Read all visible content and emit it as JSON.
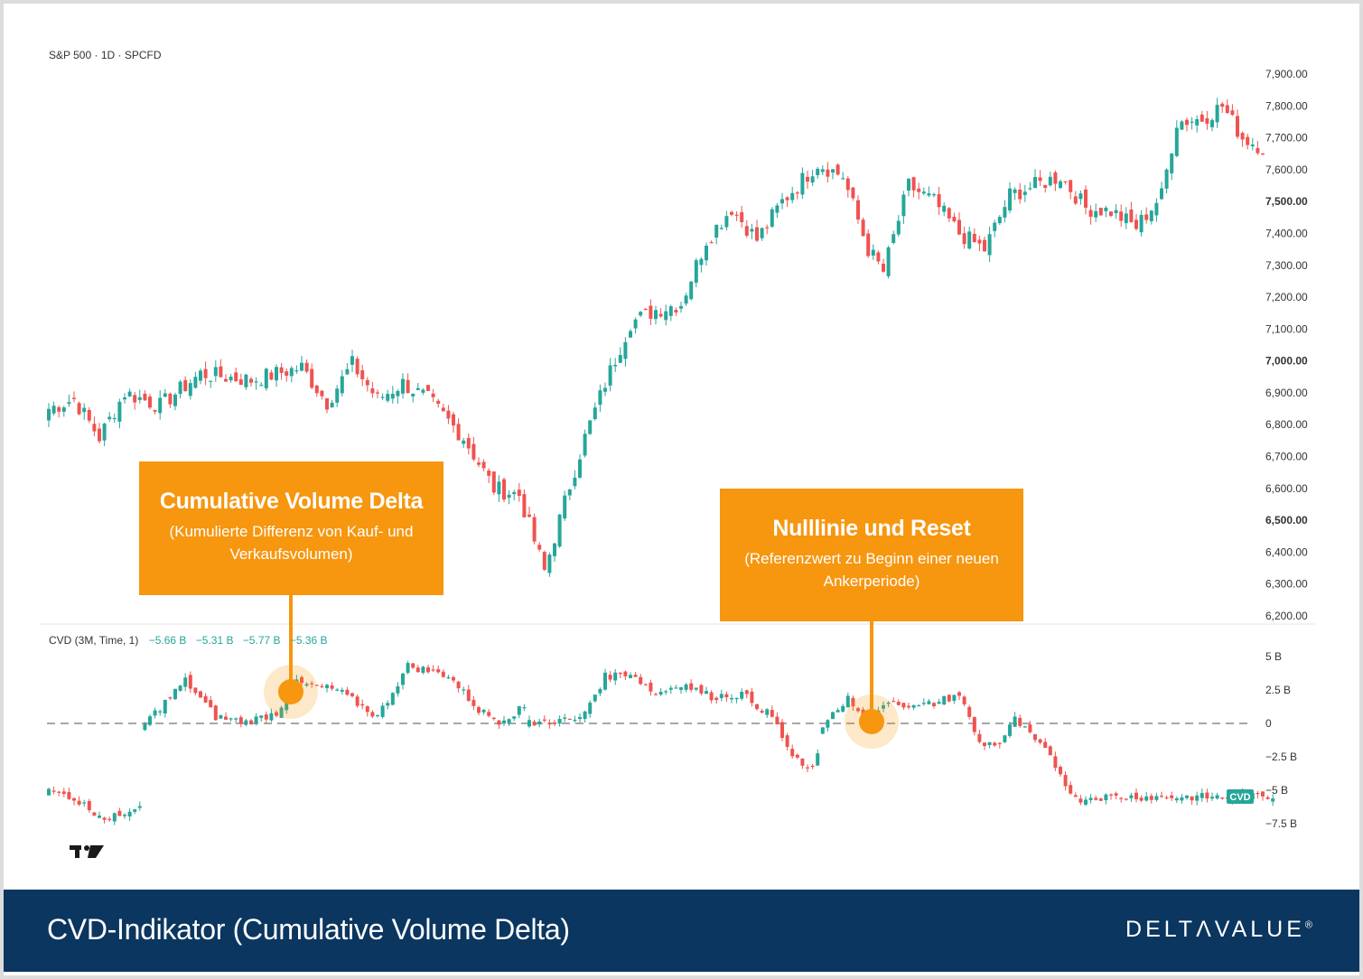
{
  "price_header": "S&P 500 · 1D · SPCFD",
  "cvd_header": {
    "label": "CVD (3M, Time, 1)",
    "values": [
      "−5.66 B",
      "−5.31 B",
      "−5.77 B",
      "−5.36 B"
    ]
  },
  "price_axis_labels": [
    "7,900.00",
    "7,800.00",
    "7,700.00",
    "7,600.00",
    "7,500.00",
    "7,400.00",
    "7,300.00",
    "7,200.00",
    "7,100.00",
    "7,000.00",
    "6,900.00",
    "6,800.00",
    "6,700.00",
    "6,600.00",
    "6,500.00",
    "6,400.00",
    "6,300.00",
    "6,200.00"
  ],
  "cvd_axis_labels": [
    "5 B",
    "2.5 B",
    "0",
    "−2.5 B",
    "−5 B",
    "−7.5 B"
  ],
  "cvd_tag": "CVD",
  "callouts": [
    {
      "title": "Cumulative Volume Delta",
      "subtitle": "(Kumulierte Differenz von Kauf- und Verkaufsvolumen)"
    },
    {
      "title": "Nulllinie und Reset",
      "subtitle": "(Referenzwert zu Beginn einer neuen Ankerperiode)"
    }
  ],
  "footer": {
    "title": "CVD-Indikator (Cumulative Volume Delta)",
    "logo": "DELTΛVALUE",
    "logo_mark": "®"
  },
  "colors": {
    "up": "#26a69a",
    "down": "#ef5350",
    "callout": "#f7960f",
    "footer": "#0b365f"
  },
  "chart_data": [
    {
      "type": "candlestick",
      "name": "S&P 500",
      "ylim": [
        6150,
        7950
      ],
      "y_ticks": [
        6200,
        6300,
        6400,
        6500,
        6600,
        6700,
        6800,
        6900,
        7000,
        7100,
        7200,
        7300,
        7400,
        7500,
        7600,
        7700,
        7800,
        7900
      ],
      "waypoints": [
        [
          0,
          6850
        ],
        [
          5,
          6880
        ],
        [
          10,
          6760
        ],
        [
          15,
          6900
        ],
        [
          22,
          6860
        ],
        [
          30,
          6960
        ],
        [
          40,
          6940
        ],
        [
          50,
          6980
        ],
        [
          55,
          6870
        ],
        [
          60,
          6990
        ],
        [
          65,
          6880
        ],
        [
          70,
          6930
        ],
        [
          75,
          6880
        ],
        [
          82,
          6760
        ],
        [
          88,
          6600
        ],
        [
          93,
          6580
        ],
        [
          98,
          6340
        ],
        [
          103,
          6610
        ],
        [
          106,
          6760
        ],
        [
          110,
          6930
        ],
        [
          115,
          7120
        ],
        [
          120,
          7160
        ],
        [
          125,
          7180
        ],
        [
          130,
          7380
        ],
        [
          135,
          7480
        ],
        [
          140,
          7380
        ],
        [
          145,
          7500
        ],
        [
          152,
          7620
        ],
        [
          157,
          7580
        ],
        [
          162,
          7350
        ],
        [
          165,
          7280
        ],
        [
          170,
          7550
        ],
        [
          175,
          7500
        ],
        [
          180,
          7400
        ],
        [
          185,
          7350
        ],
        [
          190,
          7520
        ],
        [
          195,
          7550
        ],
        [
          200,
          7580
        ],
        [
          205,
          7480
        ],
        [
          210,
          7470
        ],
        [
          215,
          7420
        ],
        [
          220,
          7520
        ],
        [
          223,
          7750
        ],
        [
          228,
          7760
        ],
        [
          232,
          7800
        ],
        [
          236,
          7700
        ],
        [
          240,
          7670
        ]
      ]
    },
    {
      "type": "candlestick",
      "name": "CVD",
      "ylim": [
        -8.5,
        6.3
      ],
      "y_ticks": [
        5,
        2.5,
        0,
        -2.5,
        -5,
        -7.5
      ],
      "zero_line": 0,
      "segments": [
        {
          "start": 0,
          "end": 18,
          "waypoints": [
            [
              0,
              -5.1
            ],
            [
              4,
              -5.4
            ],
            [
              9,
              -6.6
            ],
            [
              12,
              -7.2
            ],
            [
              18,
              -6.0
            ]
          ]
        },
        {
          "start": 19,
          "end": 94,
          "waypoints": [
            [
              0,
              0
            ],
            [
              8,
              3.2
            ],
            [
              14,
              0.5
            ],
            [
              20,
              0.1
            ],
            [
              26,
              0.8
            ],
            [
              30,
              3
            ],
            [
              38,
              2.5
            ],
            [
              46,
              0.5
            ],
            [
              52,
              4.3
            ],
            [
              60,
              3.6
            ],
            [
              66,
              1
            ],
            [
              70,
              0.2
            ],
            [
              76,
              1.4
            ],
            [
              82,
              0
            ],
            [
              87,
              3.2
            ],
            [
              94,
              3.8
            ]
          ]
        },
        {
          "start": 95,
          "end": 152,
          "waypoints": [
            [
              0,
              0
            ],
            [
              5,
              0.2
            ],
            [
              10,
              0.3
            ],
            [
              15,
              3.5
            ],
            [
              20,
              3.8
            ],
            [
              25,
              2.2
            ],
            [
              30,
              3
            ],
            [
              36,
              2
            ],
            [
              42,
              2.2
            ],
            [
              48,
              0.5
            ],
            [
              52,
              -2.5
            ],
            [
              55,
              -3.5
            ],
            [
              58,
              -2
            ],
            [
              62,
              -1.5
            ]
          ]
        },
        {
          "start": 153,
          "end": 242,
          "waypoints": [
            [
              0,
              0
            ],
            [
              5,
              1.8
            ],
            [
              10,
              0.2
            ],
            [
              13,
              1.8
            ],
            [
              18,
              1.2
            ],
            [
              22,
              1.5
            ],
            [
              27,
              2.2
            ],
            [
              31,
              -1.5
            ],
            [
              35,
              -1.5
            ],
            [
              38,
              0.3
            ],
            [
              40,
              -0.5
            ],
            [
              45,
              -2.5
            ],
            [
              50,
              -5.7
            ],
            [
              54,
              -5.5
            ]
          ]
        }
      ]
    }
  ]
}
